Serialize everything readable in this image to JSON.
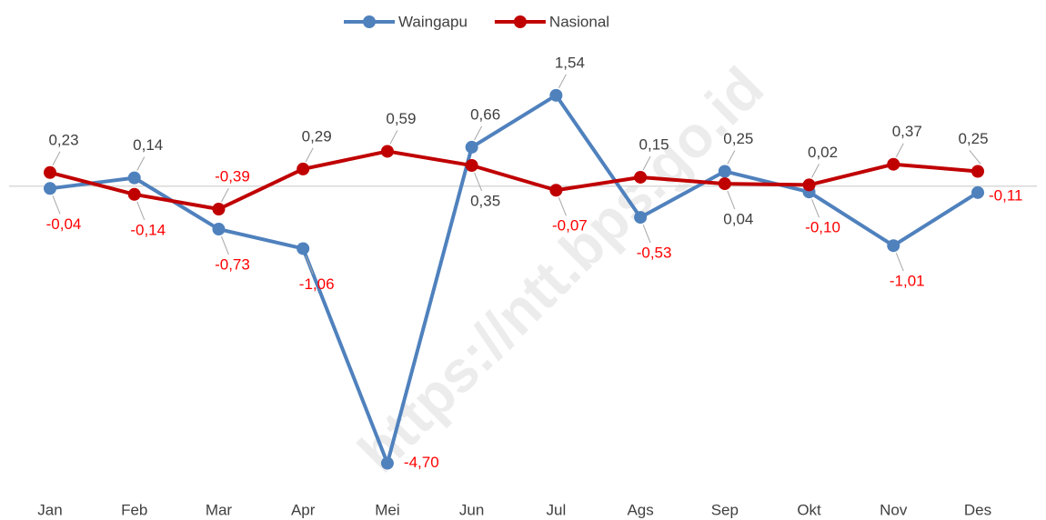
{
  "chart_data": {
    "type": "line",
    "categories": [
      "Jan",
      "Feb",
      "Mar",
      "Apr",
      "Mei",
      "Jun",
      "Jul",
      "Ags",
      "Sep",
      "Okt",
      "Nov",
      "Des"
    ],
    "series": [
      {
        "name": "Waingapu",
        "color": "#4f81bd",
        "values": [
          -0.04,
          0.14,
          -0.73,
          -1.06,
          -4.7,
          0.66,
          1.54,
          -0.53,
          0.25,
          -0.1,
          -1.01,
          -0.11
        ],
        "value_labels": [
          "-0,04",
          "0,14",
          "-0,73",
          "-1,06",
          "-4,70",
          "0,66",
          "1,54",
          "-0,53",
          "0,25",
          "-0,10",
          "-1,01",
          "-0,11"
        ]
      },
      {
        "name": "Nasional",
        "color": "#c00000",
        "values": [
          0.23,
          -0.14,
          -0.39,
          0.29,
          0.59,
          0.35,
          -0.07,
          0.15,
          0.04,
          0.02,
          0.37,
          0.25
        ],
        "value_labels": [
          "0,23",
          "-0,14",
          "-0,39",
          "0,29",
          "0,59",
          "0,35",
          "-0,07",
          "0,15",
          "0,04",
          "0,02",
          "0,37",
          "0,25"
        ]
      }
    ],
    "ylim": [
      -4.8,
      2.0
    ],
    "legend": "top",
    "watermark": "https://ntt.bps.go.id"
  }
}
